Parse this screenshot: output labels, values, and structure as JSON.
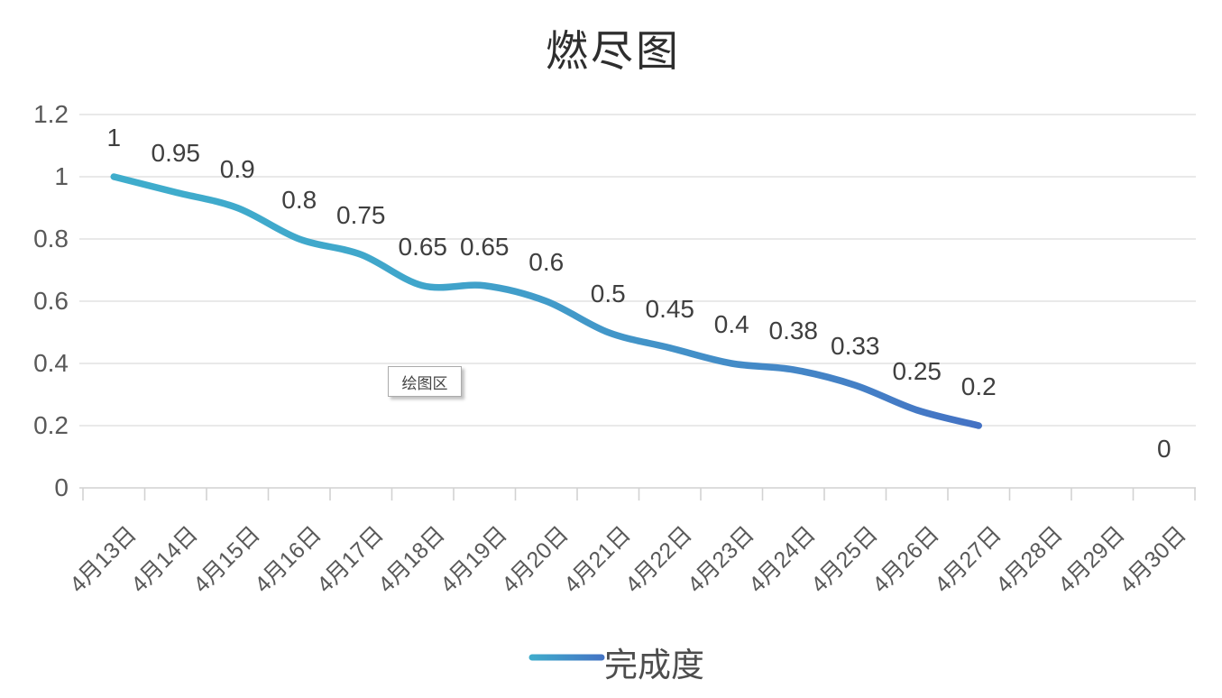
{
  "chart_data": {
    "type": "line",
    "title": "燃尽图",
    "categories": [
      "4月13日",
      "4月14日",
      "4月15日",
      "4月16日",
      "4月17日",
      "4月18日",
      "4月19日",
      "4月20日",
      "4月21日",
      "4月22日",
      "4月23日",
      "4月24日",
      "4月25日",
      "4月26日",
      "4月27日",
      "4月28日",
      "4月29日",
      "4月30日"
    ],
    "series": [
      {
        "name": "完成度",
        "values": [
          1,
          0.95,
          0.9,
          0.8,
          0.75,
          0.65,
          0.65,
          0.6,
          0.5,
          0.45,
          0.4,
          0.38,
          0.33,
          0.25,
          0.2,
          null,
          null,
          0
        ],
        "labels": [
          "1",
          "0.95",
          "0.9",
          "0.8",
          "0.75",
          "0.65",
          "0.65",
          "0.6",
          "0.5",
          "0.45",
          "0.4",
          "0.38",
          "0.33",
          "0.25",
          "0.2",
          null,
          null,
          "0"
        ]
      }
    ],
    "y_ticks": [
      "1.2",
      "1",
      "0.8",
      "0.6",
      "0.4",
      "0.2",
      "0"
    ],
    "ylim": [
      0,
      1.2
    ],
    "grid": "horizontal",
    "smooth": true,
    "legend_position": "bottom",
    "colors": {
      "line_gradient_start": "#3FADCC",
      "line_gradient_end": "#4472C4",
      "gridline": "#E2E2E2",
      "axis_line": "#D2D2D2",
      "axis_text": "#595959",
      "data_label_text": "#3F3F3F",
      "title_text": "#2E2E2E"
    }
  },
  "tooltip": {
    "label": "绘图区"
  }
}
